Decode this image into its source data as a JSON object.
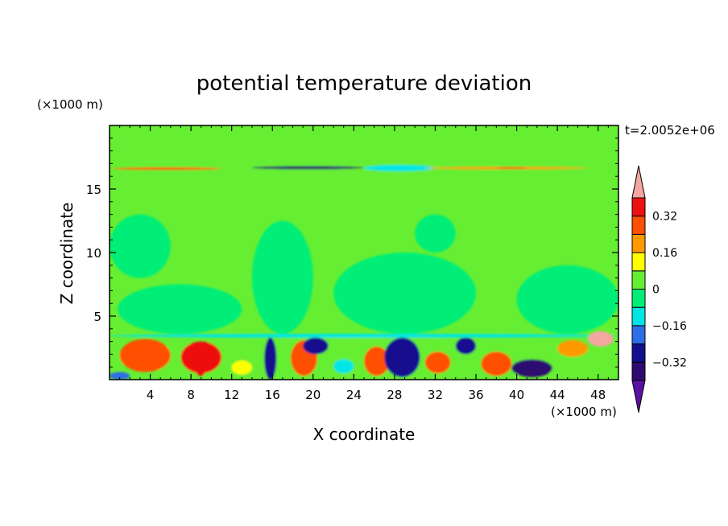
{
  "chart_data": {
    "type": "heatmap",
    "title": "potential temperature deviation",
    "xlabel": "X coordinate",
    "ylabel": "Z coordinate",
    "x_unit": "(×1000 m)",
    "y_unit": "(×1000 m)",
    "time_label": "t=2.0052e+06",
    "xlim": [
      0,
      50
    ],
    "ylim": [
      0,
      20
    ],
    "x_ticks": [
      4,
      8,
      12,
      16,
      20,
      24,
      28,
      32,
      36,
      40,
      44,
      48
    ],
    "y_ticks": [
      5,
      10,
      15
    ],
    "x_tick_labels": [
      "4",
      "8",
      "12",
      "16",
      "20",
      "24",
      "28",
      "32",
      "36",
      "40",
      "44",
      "48"
    ],
    "y_tick_labels": [
      "5",
      "10",
      "15"
    ],
    "colorbar": {
      "levels": [
        -0.4,
        -0.32,
        -0.24,
        -0.16,
        -0.08,
        0,
        0.08,
        0.16,
        0.24,
        0.32,
        0.4
      ],
      "labeled_ticks": [
        "0.32",
        "0.16",
        "0",
        "−0.16",
        "−0.32"
      ],
      "colors_low_to_high": [
        "#2e0a70",
        "#12108f",
        "#2d6ee6",
        "#00e6e6",
        "#00ee77",
        "#66ee33",
        "#ffff00",
        "#ff9900",
        "#ff4f00",
        "#ee1111"
      ],
      "under_color": "#5a10a0",
      "over_color": "#f4a6a0"
    },
    "field_regions": [
      {
        "x": [
          0,
          50
        ],
        "z": [
          0,
          20
        ],
        "value": 0.04
      },
      {
        "x": [
          14,
          20
        ],
        "z": [
          3.6,
          12.5
        ],
        "value": -0.02
      },
      {
        "x": [
          0.8,
          13
        ],
        "z": [
          3.6,
          7.5
        ],
        "value": -0.02
      },
      {
        "x": [
          22,
          36
        ],
        "z": [
          3.6,
          10
        ],
        "value": -0.02
      },
      {
        "x": [
          30,
          34
        ],
        "z": [
          10,
          13
        ],
        "value": -0.02
      },
      {
        "x": [
          40,
          50
        ],
        "z": [
          3.6,
          9
        ],
        "value": -0.02
      },
      {
        "x": [
          0,
          6
        ],
        "z": [
          8,
          13
        ],
        "value": -0.02
      },
      {
        "x": [
          0,
          50
        ],
        "z": [
          16.2,
          17.0
        ],
        "value": 0.04
      },
      {
        "x": [
          0.3,
          11
        ],
        "z": [
          16.5,
          16.7
        ],
        "value": 0.26
      },
      {
        "x": [
          14,
          25
        ],
        "z": [
          16.55,
          16.8
        ],
        "value": -0.34
      },
      {
        "x": [
          25,
          32
        ],
        "z": [
          16.4,
          16.9
        ],
        "value": -0.12
      },
      {
        "x": [
          31,
          47
        ],
        "z": [
          16.55,
          16.75
        ],
        "value": 0.2
      },
      {
        "x": [
          38,
          41
        ],
        "z": [
          16.6,
          16.7
        ],
        "value": 0.36
      },
      {
        "x": [
          0,
          50
        ],
        "z": [
          3.3,
          3.6
        ],
        "value": -0.12
      },
      {
        "x": [
          0,
          50
        ],
        "z": [
          0,
          3.3
        ],
        "value": 0.04
      },
      {
        "x": [
          1,
          6
        ],
        "z": [
          0.6,
          3.2
        ],
        "value": 0.3
      },
      {
        "x": [
          7,
          11
        ],
        "z": [
          0.5,
          3.0
        ],
        "value": 0.32
      },
      {
        "x": [
          8.3,
          9.6
        ],
        "z": [
          0.3,
          2.0
        ],
        "value": 0.36
      },
      {
        "x": [
          15.2,
          16.4
        ],
        "z": [
          0,
          3.3
        ],
        "value": -0.3
      },
      {
        "x": [
          17.8,
          20.4
        ],
        "z": [
          0.3,
          3.1
        ],
        "value": 0.3
      },
      {
        "x": [
          19,
          21.5
        ],
        "z": [
          2.0,
          3.3
        ],
        "value": -0.3
      },
      {
        "x": [
          22,
          24
        ],
        "z": [
          0.5,
          1.6
        ],
        "value": -0.1
      },
      {
        "x": [
          25,
          27.5
        ],
        "z": [
          0.3,
          2.6
        ],
        "value": 0.24
      },
      {
        "x": [
          27,
          30.5
        ],
        "z": [
          0.2,
          3.3
        ],
        "value": -0.3
      },
      {
        "x": [
          31,
          33.5
        ],
        "z": [
          0.5,
          2.2
        ],
        "value": 0.28
      },
      {
        "x": [
          34,
          36
        ],
        "z": [
          2.0,
          3.3
        ],
        "value": -0.28
      },
      {
        "x": [
          36.5,
          39.5
        ],
        "z": [
          0.3,
          2.2
        ],
        "value": 0.3
      },
      {
        "x": [
          39.5,
          43.5
        ],
        "z": [
          0.2,
          1.6
        ],
        "value": -0.34
      },
      {
        "x": [
          44,
          47
        ],
        "z": [
          1.8,
          3.1
        ],
        "value": 0.2
      },
      {
        "x": [
          47,
          49.5
        ],
        "z": [
          2.6,
          3.8
        ],
        "value": 0.42
      },
      {
        "x": [
          0,
          2
        ],
        "z": [
          0,
          0.6
        ],
        "value": -0.2
      },
      {
        "x": [
          12,
          14
        ],
        "z": [
          0.4,
          1.5
        ],
        "value": 0.15
      }
    ]
  }
}
